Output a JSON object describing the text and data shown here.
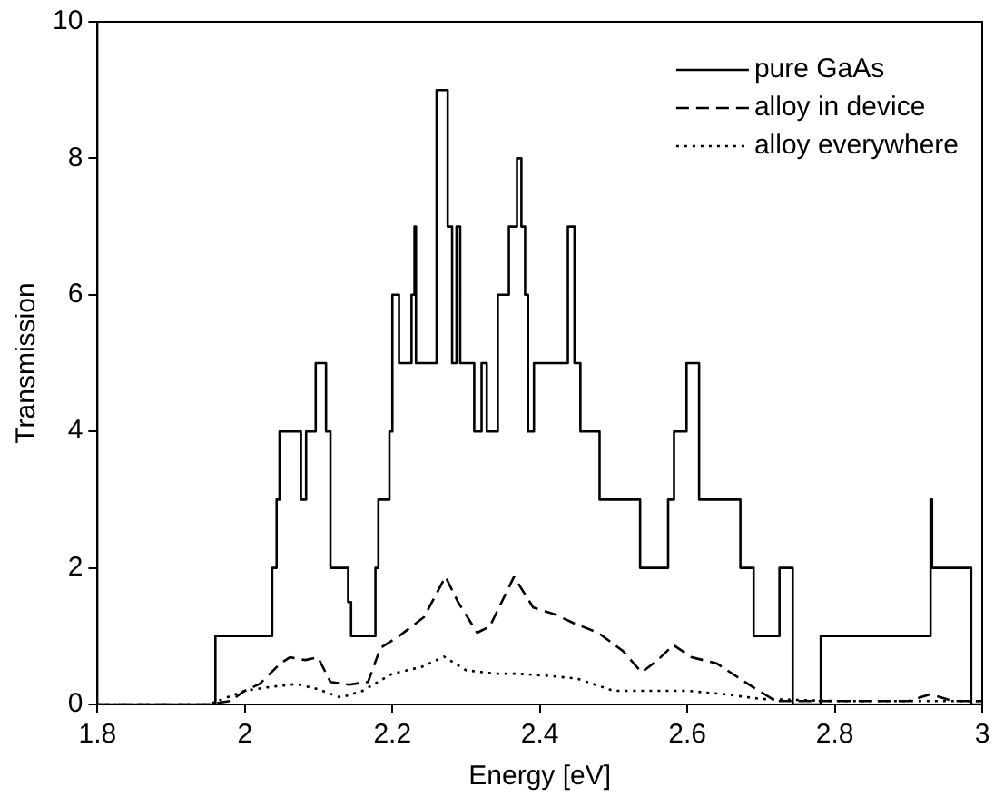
{
  "chart_data": {
    "type": "line",
    "xlabel": "Energy [eV]",
    "ylabel": "Transmission",
    "xlim": [
      1.8,
      3
    ],
    "ylim": [
      0,
      10
    ],
    "xticks": [
      1.8,
      2,
      2.2,
      2.4,
      2.6,
      2.8,
      3
    ],
    "yticks": [
      0,
      2,
      4,
      6,
      8,
      10
    ],
    "grid": false,
    "legend": "top right",
    "marker": "none",
    "series": [
      {
        "name": "pure GaAs",
        "type": "step",
        "color": "#000000",
        "line_style": "solid",
        "x": [
          1.8,
          1.96,
          2.037,
          2.043,
          2.047,
          2.076,
          2.083,
          2.088,
          2.096,
          2.11,
          2.116,
          2.14,
          2.144,
          2.177,
          2.181,
          2.196,
          2.2,
          2.209,
          2.226,
          2.23,
          2.232,
          2.26,
          2.275,
          2.281,
          2.287,
          2.292,
          2.311,
          2.321,
          2.328,
          2.343,
          2.358,
          2.369,
          2.375,
          2.38,
          2.384,
          2.392,
          2.438,
          2.447,
          2.455,
          2.481,
          2.536,
          2.574,
          2.582,
          2.599,
          2.616,
          2.672,
          2.69,
          2.725,
          2.743,
          2.781,
          2.93,
          2.932,
          2.985,
          3.0
        ],
        "values": [
          0,
          1,
          2,
          3,
          4,
          3,
          4,
          4,
          5,
          4,
          2,
          1.5,
          1,
          2,
          3,
          4,
          6,
          5,
          6,
          7,
          5,
          9,
          7,
          5,
          7,
          5,
          4,
          5,
          4,
          6,
          7,
          8,
          7,
          6,
          4,
          5,
          7,
          5,
          4,
          3,
          2,
          3,
          4,
          5,
          3,
          2,
          1,
          2,
          0,
          1,
          3,
          2,
          0,
          0
        ]
      },
      {
        "name": "alloy in device",
        "type": "line",
        "color": "#000000",
        "line_style": "dashed",
        "x": [
          1.8,
          1.95,
          1.98,
          2.0,
          2.02,
          2.048,
          2.061,
          2.082,
          2.099,
          2.116,
          2.141,
          2.167,
          2.184,
          2.209,
          2.243,
          2.272,
          2.289,
          2.315,
          2.332,
          2.365,
          2.391,
          2.42,
          2.446,
          2.479,
          2.513,
          2.538,
          2.56,
          2.581,
          2.606,
          2.64,
          2.678,
          2.691,
          2.72,
          2.8,
          2.9,
          2.93,
          2.96,
          3.0
        ],
        "values": [
          0,
          0,
          0.05,
          0.2,
          0.3,
          0.6,
          0.69,
          0.65,
          0.69,
          0.33,
          0.29,
          0.33,
          0.83,
          1.0,
          1.28,
          1.87,
          1.5,
          1.05,
          1.14,
          1.87,
          1.42,
          1.32,
          1.19,
          1.05,
          0.78,
          0.47,
          0.65,
          0.87,
          0.69,
          0.6,
          0.33,
          0.24,
          0.05,
          0.05,
          0.05,
          0.15,
          0.05,
          0.05
        ]
      },
      {
        "name": "alloy everywhere",
        "type": "line",
        "color": "#000000",
        "line_style": "dotted",
        "x": [
          1.8,
          1.95,
          2.0,
          2.03,
          2.07,
          2.1,
          2.13,
          2.16,
          2.2,
          2.24,
          2.27,
          2.3,
          2.34,
          2.37,
          2.41,
          2.45,
          2.5,
          2.55,
          2.6,
          2.65,
          2.7,
          2.8,
          2.9,
          3.0
        ],
        "values": [
          0,
          0,
          0.2,
          0.25,
          0.3,
          0.22,
          0.1,
          0.2,
          0.45,
          0.55,
          0.7,
          0.5,
          0.45,
          0.45,
          0.42,
          0.38,
          0.2,
          0.2,
          0.2,
          0.15,
          0.08,
          0.05,
          0.05,
          0.05
        ]
      }
    ]
  }
}
